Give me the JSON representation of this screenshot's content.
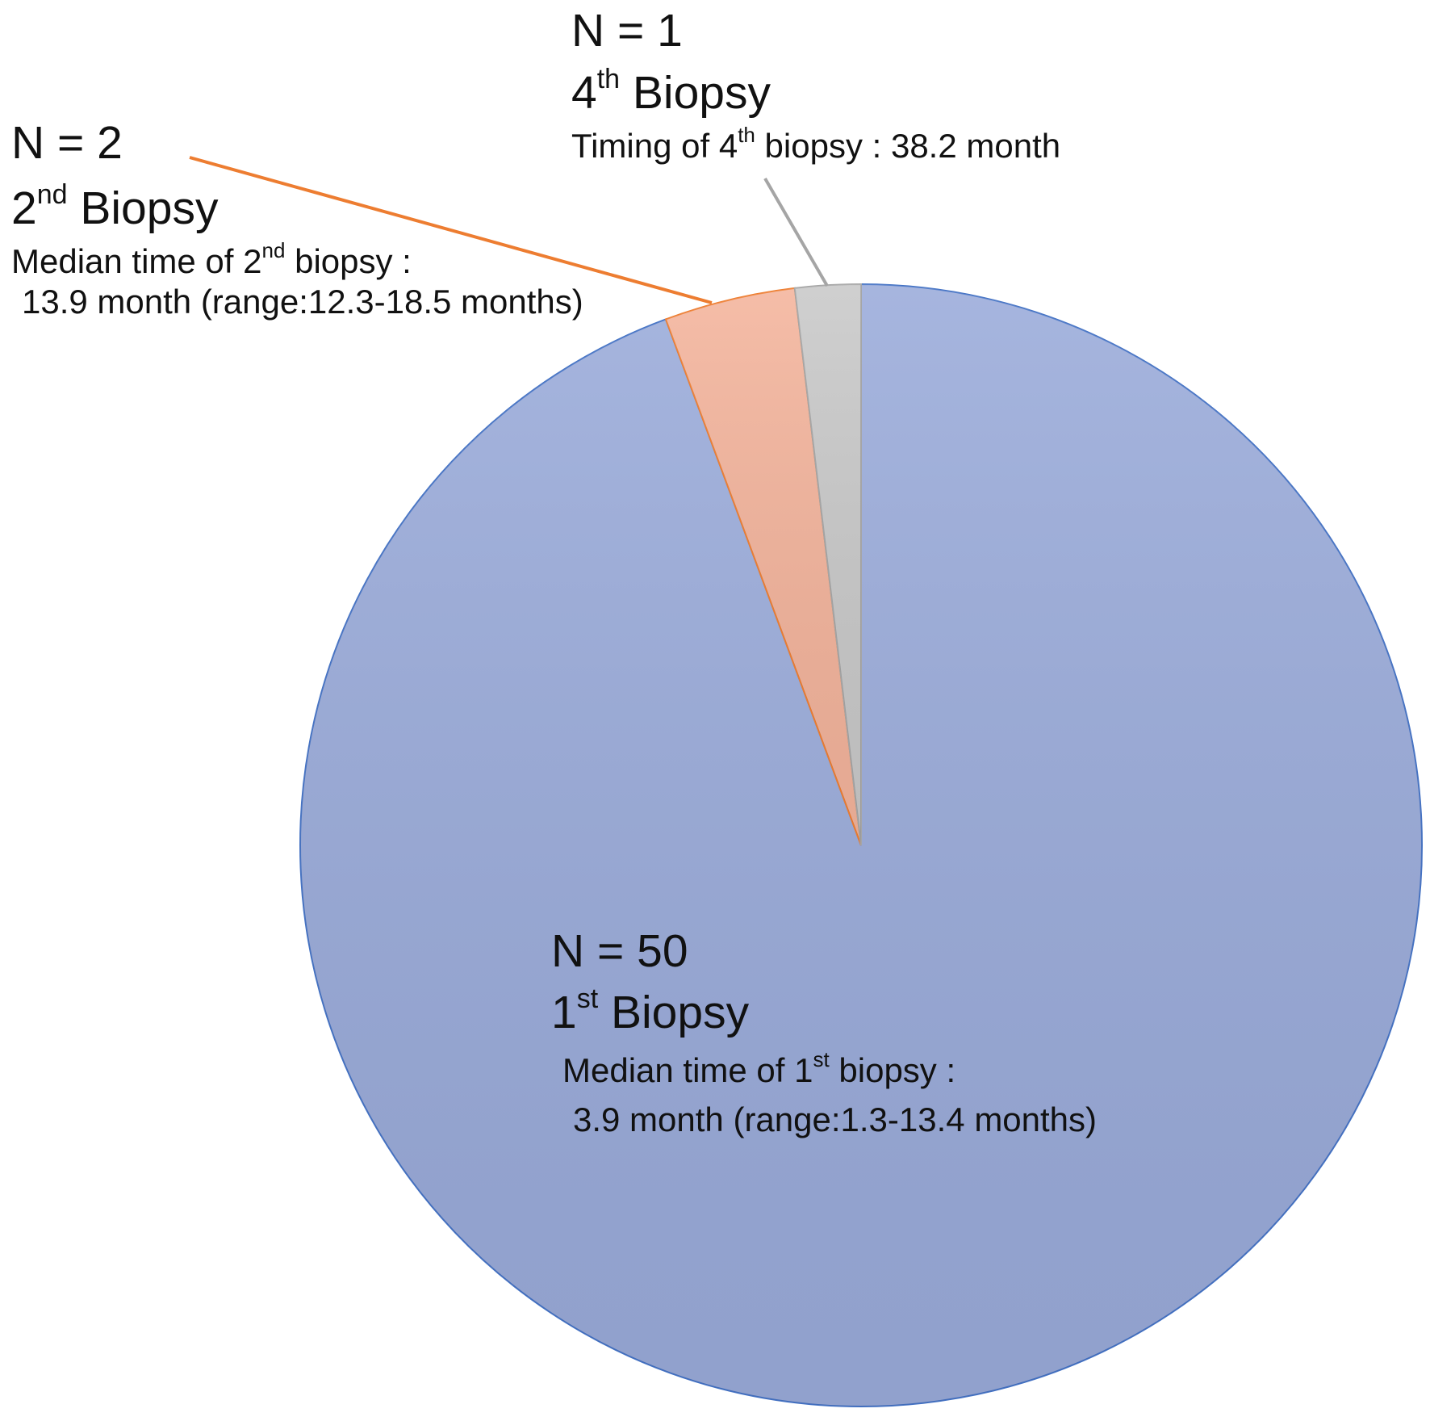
{
  "chart_data": {
    "type": "pie",
    "values": [
      50,
      2,
      1
    ],
    "value_labels": [
      "N = 50",
      "N = 2",
      "N = 1"
    ],
    "labels": [
      [
        "1",
        "st",
        " Biopsy"
      ],
      [
        "2",
        "nd",
        " Biopsy"
      ],
      [
        "4",
        "th",
        " Biopsy"
      ]
    ],
    "notes": [
      [
        [
          "Median time of 1",
          "st",
          " biopsy  :"
        ],
        [
          "3.9 month (range:1.3-13.4 months)"
        ]
      ],
      [
        [
          "Median time of 2",
          "nd",
          " biopsy :"
        ],
        [
          "13.9 month (range:12.3-18.5 months)"
        ]
      ],
      [
        [
          "Timing of 4",
          "th",
          " biopsy : 38.2 month"
        ]
      ]
    ],
    "colors": [
      "#9aabda",
      "#f4b49c",
      "#c9c9c9"
    ],
    "edge_colors": [
      "#4472c4",
      "#ed7d31",
      "#a5a5a5"
    ]
  }
}
